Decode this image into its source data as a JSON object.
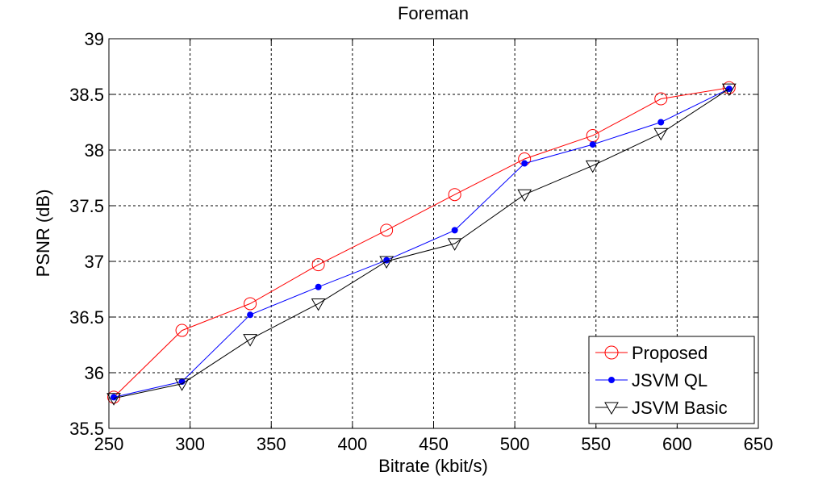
{
  "chart_data": {
    "type": "line",
    "title": "Foreman",
    "xlabel": "Bitrate (kbit/s)",
    "ylabel": "PSNR (dB)",
    "xlim": [
      250,
      650
    ],
    "ylim": [
      35.5,
      39
    ],
    "xticks": [
      250,
      300,
      350,
      400,
      450,
      500,
      550,
      600,
      650
    ],
    "yticks": [
      35.5,
      36,
      36.5,
      37,
      37.5,
      38,
      38.5,
      39
    ],
    "xtick_labels": [
      "250",
      "300",
      "350",
      "400",
      "450",
      "500",
      "550",
      "600",
      "650"
    ],
    "ytick_labels": [
      "35.5",
      "36",
      "36.5",
      "37",
      "37.5",
      "38",
      "38.5",
      "39"
    ],
    "grid": true,
    "legend_position": "bottom-right",
    "series": [
      {
        "name": "Proposed",
        "color": "#ff0000",
        "marker": "circle",
        "x": [
          253,
          295,
          337,
          379,
          421,
          463,
          506,
          548,
          590,
          632
        ],
        "y": [
          35.78,
          36.38,
          36.62,
          36.97,
          37.28,
          37.6,
          37.92,
          38.13,
          38.46,
          38.56
        ]
      },
      {
        "name": "JSVM QL",
        "color": "#0000ff",
        "marker": "dot",
        "x": [
          253,
          295,
          337,
          379,
          421,
          463,
          506,
          548,
          590,
          632
        ],
        "y": [
          35.78,
          35.92,
          36.52,
          36.77,
          37.01,
          37.28,
          37.88,
          38.05,
          38.25,
          38.55
        ]
      },
      {
        "name": "JSVM Basic",
        "color": "#000000",
        "marker": "triangle-down",
        "x": [
          253,
          295,
          337,
          379,
          421,
          463,
          506,
          548,
          590,
          632
        ],
        "y": [
          35.77,
          35.9,
          36.3,
          36.62,
          37.0,
          37.16,
          37.6,
          37.86,
          38.15,
          38.55
        ]
      }
    ]
  }
}
